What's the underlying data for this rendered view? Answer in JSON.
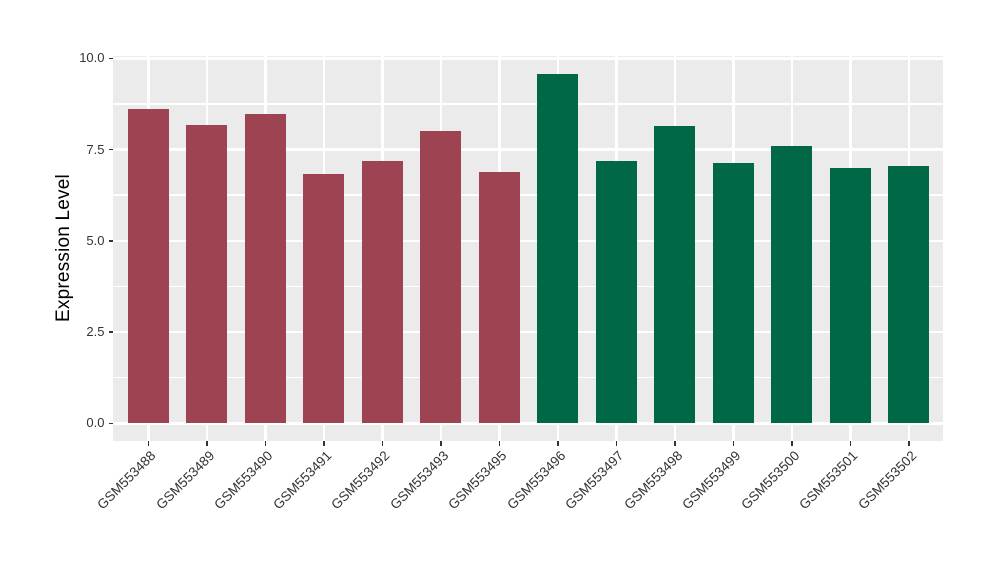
{
  "chart_data": {
    "type": "bar",
    "title": "",
    "xlabel": "",
    "ylabel": "Expression Level",
    "categories": [
      "GSM553488",
      "GSM553489",
      "GSM553490",
      "GSM553491",
      "GSM553492",
      "GSM553493",
      "GSM553495",
      "GSM553496",
      "GSM553497",
      "GSM553498",
      "GSM553499",
      "GSM553500",
      "GSM553501",
      "GSM553502"
    ],
    "values": [
      8.6,
      8.18,
      8.47,
      6.84,
      7.19,
      8.0,
      6.88,
      9.57,
      7.19,
      8.15,
      7.12,
      7.61,
      6.99,
      7.05
    ],
    "groups": [
      "group1",
      "group1",
      "group1",
      "group1",
      "group1",
      "group1",
      "group1",
      "group2",
      "group2",
      "group2",
      "group2",
      "group2",
      "group2",
      "group2"
    ],
    "group_colors": {
      "group1": "#9E4352",
      "group2": "#006747"
    },
    "ylim": [
      0,
      10
    ],
    "yticks": [
      0,
      2.5,
      5,
      7.5,
      10
    ],
    "ytick_labels": [
      "0.0",
      "2.5",
      "5.0",
      "7.5",
      "10.0"
    ],
    "grid": "on",
    "legend": "none",
    "panel_bg": "#EBEBEB",
    "grid_color": "#FFFFFF",
    "axis_text_color": "#333333",
    "tick_color": "#333333"
  }
}
